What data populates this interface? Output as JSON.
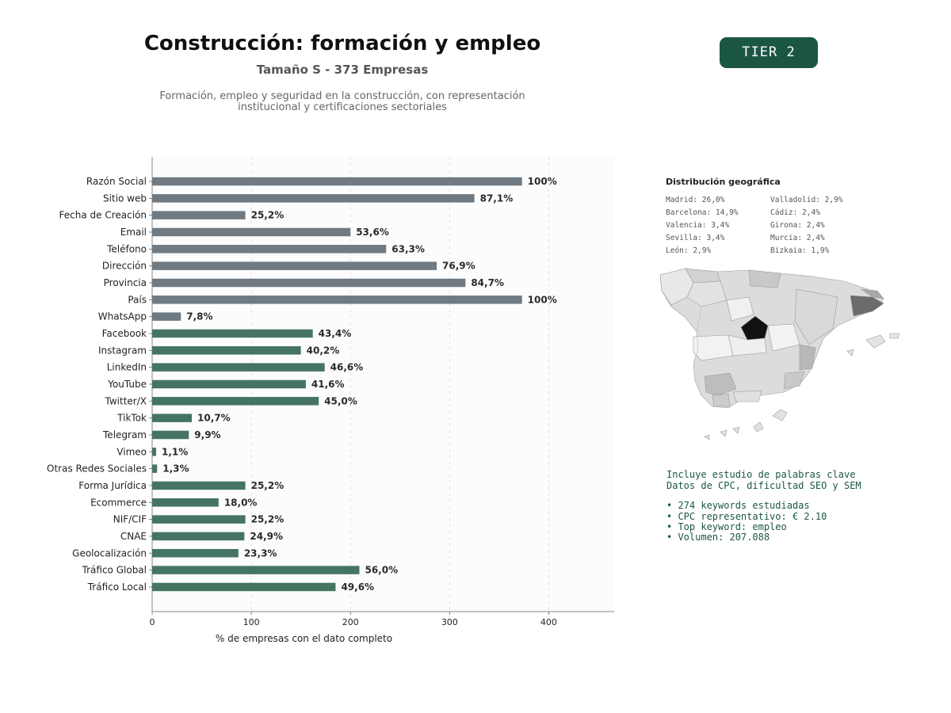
{
  "header": {
    "title": "Construcción: formación y empleo",
    "subtitle": "Tamaño S - 373 Empresas",
    "description_line1": "Formación, empleo y seguridad en la construcción, con representación",
    "description_line2": "institucional y certificaciones sectoriales",
    "tier": "TIER 2"
  },
  "colors": {
    "gray_bar": "#6f7a83",
    "green_bar": "#457562",
    "tier_bg": "#1b5645"
  },
  "chart_data": {
    "type": "bar",
    "orientation": "horizontal",
    "xlabel": "% de empresas con el dato completo",
    "xlim": [
      0,
      466
    ],
    "xticks": [
      0,
      100,
      200,
      300,
      400
    ],
    "grid": "x-dashed",
    "categories": [
      "Razón Social",
      "Sitio web",
      "Fecha de Creación",
      "Email",
      "Teléfono",
      "Dirección",
      "Provincia",
      "País",
      "WhatsApp",
      "Facebook",
      "Instagram",
      "LinkedIn",
      "YouTube",
      "Twitter/X",
      "TikTok",
      "Telegram",
      "Vimeo",
      "Otras Redes Sociales",
      "Forma Jurídica",
      "Ecommerce",
      "NIF/CIF",
      "CNAE",
      "Geolocalización",
      "Tráfico Global",
      "Tráfico Local"
    ],
    "values": [
      373,
      325,
      94,
      200,
      236,
      287,
      316,
      373,
      29,
      162,
      150,
      174,
      155,
      168,
      40,
      37,
      4,
      5,
      94,
      67,
      94,
      93,
      87,
      209,
      185
    ],
    "labels": [
      "100%",
      "87,1%",
      "25,2%",
      "53,6%",
      "63,3%",
      "76,9%",
      "84,7%",
      "100%",
      "7,8%",
      "43,4%",
      "40,2%",
      "46,6%",
      "41,6%",
      "45,0%",
      "10,7%",
      "9,9%",
      "1,1%",
      "1,3%",
      "25,2%",
      "18,0%",
      "25,2%",
      "24,9%",
      "23,3%",
      "56,0%",
      "49,6%"
    ],
    "color_groups": [
      "gray",
      "gray",
      "gray",
      "gray",
      "gray",
      "gray",
      "gray",
      "gray",
      "gray",
      "green",
      "green",
      "green",
      "green",
      "green",
      "green",
      "green",
      "green",
      "green",
      "green",
      "green",
      "green",
      "green",
      "green",
      "green",
      "green"
    ]
  },
  "geo": {
    "title": "Distribución geográfica",
    "col1": [
      "Madrid: 26,0%",
      "Barcelona: 14,9%",
      "Valencia: 3,4%",
      "Sevilla: 3,4%",
      "León: 2,9%"
    ],
    "col2": [
      "Valladolid: 2,9%",
      "Cádiz: 2,4%",
      "Girona: 2,4%",
      "Murcia: 2,4%",
      "Bizkaia: 1,9%"
    ]
  },
  "keywords": {
    "line1": "Incluye estudio de palabras clave",
    "line2": "Datos de CPC, dificultad SEO y SEM",
    "bullets": [
      "• 274 keywords estudiadas",
      "• CPC representativo: € 2.10",
      "• Top keyword: empleo",
      "• Volumen: 207.088"
    ]
  }
}
